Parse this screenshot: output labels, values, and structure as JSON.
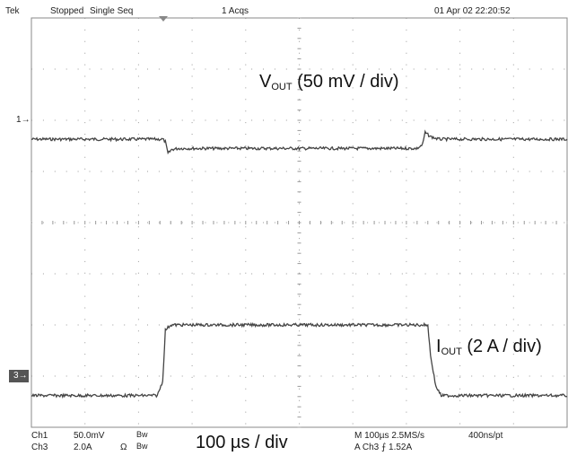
{
  "header": {
    "brand": "Tek",
    "run_state": "Stopped",
    "mode": "Single Seq",
    "acqs": "1 Acqs",
    "datetime": "01 Apr 02 22:20:52"
  },
  "channel_markers": {
    "ch1": "1",
    "ch3": "3"
  },
  "annotations": {
    "vout_main": "V",
    "vout_sub": "OUT",
    "vout_scale": "(50 mV / div)",
    "iout_main": "I",
    "iout_sub": "OUT",
    "iout_scale": "(2 A / div)",
    "timebase": "100 µs / div"
  },
  "footer": {
    "ch1_label": "Ch1",
    "ch1_scale": "50.0mV",
    "ch1_bw": "Bw",
    "ch3_label": "Ch3",
    "ch3_scale": "2.0A",
    "ch3_omega": "Ω",
    "ch3_bw": "Bw",
    "horizontal": "M 100µs 2.5MS/s",
    "trigger": "A  Ch3  ⨍  1.52A",
    "resolution": "400ns/pt"
  },
  "colors": {
    "trace": "#444444",
    "grid": "#9a9a9a",
    "border": "#888888"
  },
  "chart_data": {
    "type": "line",
    "x_unit": "div",
    "xlim": [
      0,
      10
    ],
    "ylim": [
      0,
      8
    ],
    "series": [
      {
        "name": "Ch1",
        "x": [
          0,
          2.45,
          2.5,
          2.55,
          2.62,
          2.75,
          7.2,
          7.3,
          7.35,
          7.45,
          7.6,
          10
        ],
        "y": [
          5.63,
          5.63,
          5.58,
          5.35,
          5.43,
          5.45,
          5.45,
          5.52,
          5.76,
          5.68,
          5.63,
          5.63
        ]
      },
      {
        "name": "Ch3",
        "x": [
          0,
          2.35,
          2.45,
          2.5,
          2.6,
          7.4,
          7.45,
          7.55,
          7.65,
          10
        ],
        "y": [
          0.62,
          0.62,
          0.9,
          1.9,
          2.0,
          2.0,
          1.4,
          0.8,
          0.62,
          0.62
        ]
      }
    ]
  }
}
